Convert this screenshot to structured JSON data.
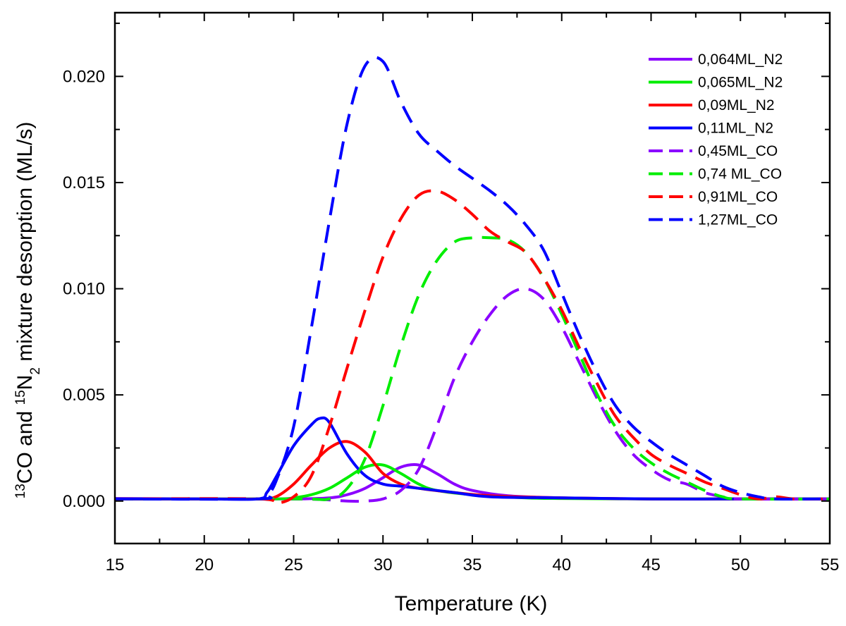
{
  "chart_data": {
    "type": "line",
    "title": "",
    "xlabel": "Temperature (K)",
    "ylabel": {
      "sup1": "13",
      "part1": "CO and ",
      "sup2": "15",
      "part2": "N",
      "sub": "2",
      "part3": " mixture desorption (ML/s)"
    },
    "xlim": [
      15,
      55
    ],
    "ylim": [
      -0.002,
      0.023
    ],
    "xticks": [
      15,
      20,
      25,
      30,
      35,
      40,
      45,
      50,
      55
    ],
    "xtick_labels": [
      "15",
      "20",
      "25",
      "30",
      "35",
      "40",
      "45",
      "50",
      "55"
    ],
    "yticks": [
      0.0,
      0.005,
      0.01,
      0.015,
      0.02
    ],
    "ytick_labels": [
      "0.000",
      "0.005",
      "0.010",
      "0.015",
      "0.020"
    ],
    "legend_position": "top-right",
    "grid": false,
    "series": [
      {
        "name": "0,064ML_N2",
        "color": "#8B00FF",
        "dash": "solid",
        "x": [
          15,
          20,
          25,
          27,
          28,
          29,
          30,
          31,
          32,
          33,
          34,
          35,
          37,
          40,
          45,
          50,
          55
        ],
        "y": [
          0.00012,
          0.0001,
          0.0001,
          0.00015,
          0.0003,
          0.0006,
          0.0011,
          0.0016,
          0.0017,
          0.0013,
          0.0008,
          0.0005,
          0.00025,
          0.00015,
          0.0001,
          0.0001,
          0.0001
        ]
      },
      {
        "name": "0,065ML_N2",
        "color": "#00EE00",
        "dash": "solid",
        "x": [
          15,
          20,
          24,
          25,
          26,
          27,
          28,
          29,
          30,
          31,
          32,
          33,
          35,
          38,
          40,
          45,
          50,
          55
        ],
        "y": [
          0.0001,
          0.0001,
          0.0001,
          0.00015,
          0.0003,
          0.0006,
          0.0011,
          0.0016,
          0.0017,
          0.0013,
          0.0008,
          0.0005,
          0.0003,
          0.00015,
          0.00012,
          0.0001,
          0.0001,
          0.0001
        ]
      },
      {
        "name": "0,09ML_N2",
        "color": "#FF0000",
        "dash": "solid",
        "x": [
          15,
          20,
          23,
          24,
          25,
          26,
          27,
          28,
          29,
          30,
          31,
          32,
          34,
          36,
          40,
          45,
          50,
          55
        ],
        "y": [
          0.0001,
          0.0001,
          0.0001,
          0.0002,
          0.0008,
          0.0017,
          0.0025,
          0.0028,
          0.0023,
          0.0013,
          0.0008,
          0.0006,
          0.0004,
          0.00025,
          0.00015,
          0.0001,
          0.0001,
          0.0001
        ]
      },
      {
        "name": "0,11ML_N2",
        "color": "#0000FF",
        "dash": "solid",
        "x": [
          15,
          20,
          23,
          23.5,
          24,
          25,
          26,
          26.5,
          27,
          28,
          29,
          30,
          31,
          32,
          34,
          36,
          40,
          45,
          50,
          55
        ],
        "y": [
          0.0001,
          0.0001,
          0.0001,
          0.0004,
          0.0011,
          0.0026,
          0.0036,
          0.0039,
          0.0037,
          0.0022,
          0.0012,
          0.0008,
          0.0007,
          0.0006,
          0.0004,
          0.0002,
          0.00015,
          0.0001,
          0.0001,
          0.0001
        ]
      },
      {
        "name": "0,45ML_CO",
        "color": "#8B00FF",
        "dash": "dash",
        "x": [
          15,
          25,
          28,
          29,
          30,
          31,
          32,
          33,
          34,
          35,
          36,
          37,
          38,
          39,
          40,
          41,
          42,
          43,
          44,
          45,
          46,
          47,
          48,
          49,
          50,
          55
        ],
        "y": [
          0.0001,
          0.0001,
          0.0,
          0.0,
          0.0001,
          0.0005,
          0.0015,
          0.0035,
          0.0058,
          0.0075,
          0.0088,
          0.0097,
          0.01,
          0.0095,
          0.0082,
          0.0065,
          0.0048,
          0.0033,
          0.0022,
          0.0015,
          0.001,
          0.0008,
          0.0004,
          0.0002,
          0.0001,
          0.0001
        ]
      },
      {
        "name": "0,74 ML_CO",
        "color": "#00EE00",
        "dash": "dash",
        "x": [
          15,
          25,
          27,
          28,
          29,
          30,
          31,
          32,
          33,
          34,
          35,
          36,
          37,
          38,
          39,
          40,
          41,
          42,
          43,
          44,
          45,
          46,
          47,
          48,
          49,
          50,
          55
        ],
        "y": [
          0.0001,
          0.0001,
          0.0001,
          0.0006,
          0.002,
          0.0045,
          0.0073,
          0.0097,
          0.0113,
          0.0122,
          0.0124,
          0.0124,
          0.0123,
          0.0117,
          0.0105,
          0.0088,
          0.0069,
          0.005,
          0.0035,
          0.0025,
          0.0018,
          0.0013,
          0.0009,
          0.0005,
          0.0002,
          0.0001,
          0.0001
        ]
      },
      {
        "name": "0,91ML_CO",
        "color": "#FF0000",
        "dash": "dash",
        "x": [
          15,
          23,
          24,
          25,
          26,
          27,
          28,
          29,
          30,
          31,
          32,
          33,
          34,
          35,
          36,
          37,
          38,
          39,
          40,
          41,
          42,
          43,
          44,
          45,
          46,
          47,
          48,
          49,
          50,
          51,
          52,
          53,
          55
        ],
        "y": [
          0.0001,
          0.0001,
          -0.0001,
          0.0002,
          0.0012,
          0.0035,
          0.0063,
          0.009,
          0.0115,
          0.0133,
          0.0144,
          0.0146,
          0.0142,
          0.0135,
          0.0127,
          0.0122,
          0.0117,
          0.0105,
          0.009,
          0.0072,
          0.0055,
          0.004,
          0.003,
          0.0022,
          0.0017,
          0.0013,
          0.0009,
          0.0006,
          0.0003,
          0.0001,
          0.0002,
          0.0001,
          0.0001
        ]
      },
      {
        "name": "1,27ML_CO",
        "color": "#0000FF",
        "dash": "dash",
        "x": [
          15,
          23,
          23.5,
          24,
          25,
          26,
          27,
          28,
          29,
          30,
          31,
          32,
          33,
          34,
          35,
          36,
          37,
          38,
          39,
          40,
          41,
          42,
          43,
          44,
          45,
          46,
          47,
          48,
          49,
          50,
          51,
          52,
          55
        ],
        "y": [
          0.0001,
          0.0001,
          0.0003,
          0.0009,
          0.0035,
          0.0082,
          0.0132,
          0.0178,
          0.0205,
          0.0207,
          0.0188,
          0.0173,
          0.0165,
          0.0158,
          0.0152,
          0.0146,
          0.0139,
          0.013,
          0.0118,
          0.0098,
          0.0078,
          0.006,
          0.0045,
          0.0035,
          0.0028,
          0.0022,
          0.0017,
          0.0012,
          0.0007,
          0.0004,
          0.0002,
          0.0001,
          0.0001
        ]
      }
    ]
  }
}
